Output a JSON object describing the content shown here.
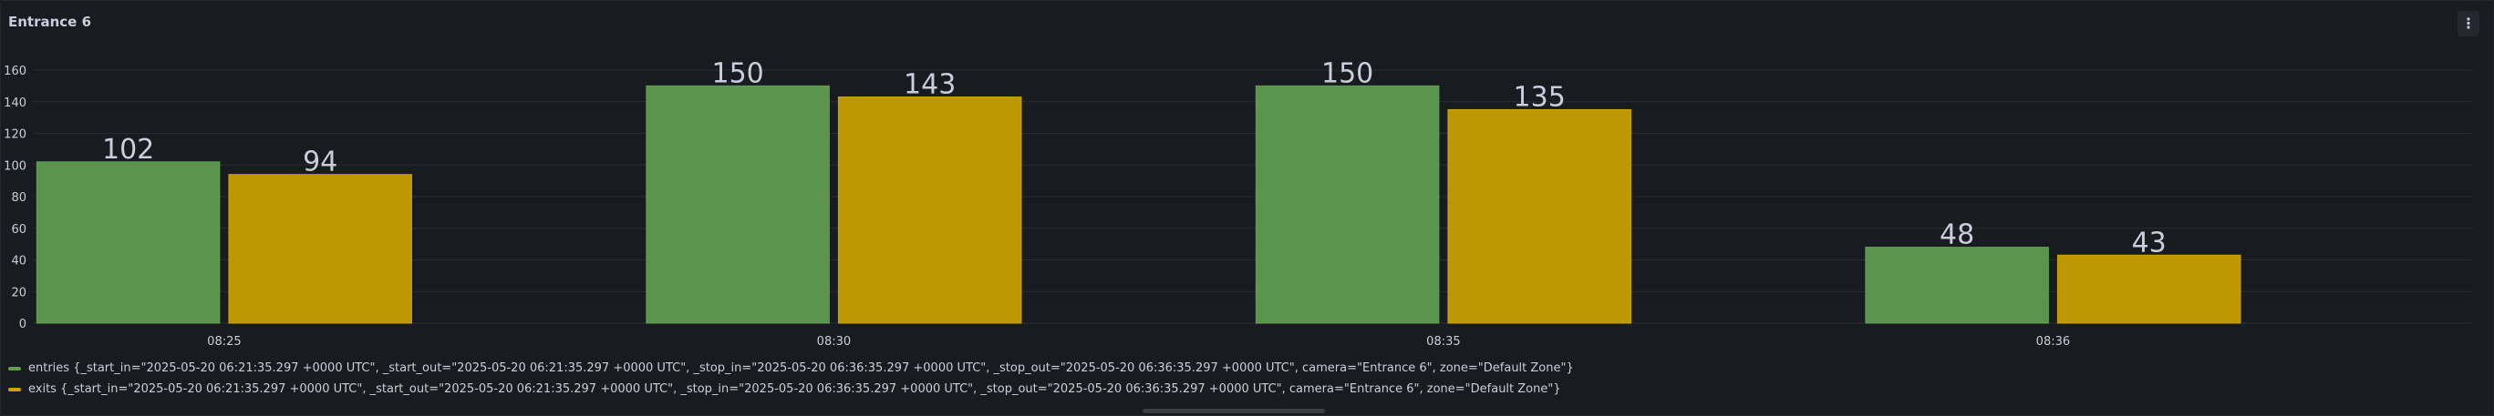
{
  "panel": {
    "title": "Entrance 6",
    "menu_icon": "vertical-ellipsis-icon"
  },
  "colors": {
    "entries": "#629e51",
    "exits": "#cca300",
    "grid": "#2a2d33",
    "text": "#ccccdc"
  },
  "chart_data": {
    "type": "bar",
    "categories": [
      "08:25",
      "08:30",
      "08:35",
      "08:36"
    ],
    "series": [
      {
        "name": "entries {_start_in=\"2025-05-20 06:21:35.297 +0000 UTC\", _start_out=\"2025-05-20 06:21:35.297 +0000 UTC\", _stop_in=\"2025-05-20 06:36:35.297 +0000 UTC\", _stop_out=\"2025-05-20 06:36:35.297 +0000 UTC\", camera=\"Entrance 6\", zone=\"Default Zone\"}",
        "values": [
          102,
          150,
          150,
          48
        ]
      },
      {
        "name": "exits {_start_in=\"2025-05-20 06:21:35.297 +0000 UTC\", _start_out=\"2025-05-20 06:21:35.297 +0000 UTC\", _stop_in=\"2025-05-20 06:36:35.297 +0000 UTC\", _stop_out=\"2025-05-20 06:36:35.297 +0000 UTC\", camera=\"Entrance 6\", zone=\"Default Zone\"}",
        "values": [
          94,
          143,
          135,
          43
        ]
      }
    ],
    "yticks": [
      0,
      20,
      40,
      60,
      80,
      100,
      120,
      140,
      160
    ],
    "ylim": [
      0,
      160
    ],
    "grid": true,
    "legend_position": "bottom-left",
    "show_value_labels": true
  }
}
